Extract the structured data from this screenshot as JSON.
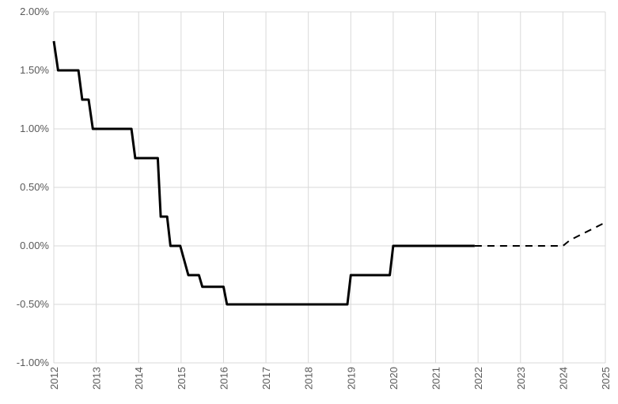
{
  "chart_data": {
    "type": "line",
    "title": "",
    "xlabel": "",
    "ylabel": "",
    "xlim": [
      2012,
      2025
    ],
    "ylim": [
      -1.0,
      2.0
    ],
    "grid": true,
    "x_ticks": [
      "2012",
      "2013",
      "2014",
      "2015",
      "2016",
      "2017",
      "2018",
      "2019",
      "2020",
      "2021",
      "2022",
      "2023",
      "2024",
      "2025"
    ],
    "y_ticks": [
      {
        "value": 2.0,
        "label": "2.00%"
      },
      {
        "value": 1.5,
        "label": "1.50%"
      },
      {
        "value": 1.0,
        "label": "1.00%"
      },
      {
        "value": 0.5,
        "label": "0.50%"
      },
      {
        "value": 0.0,
        "label": "0.00%"
      },
      {
        "value": -0.5,
        "label": "-0.50%"
      },
      {
        "value": -1.0,
        "label": "-1.00%"
      }
    ],
    "series": [
      {
        "style": "solid",
        "color": "#000000",
        "points": [
          [
            2012.0,
            1.75
          ],
          [
            2012.1,
            1.5
          ],
          [
            2012.58,
            1.5
          ],
          [
            2012.67,
            1.25
          ],
          [
            2012.82,
            1.25
          ],
          [
            2012.92,
            1.0
          ],
          [
            2013.83,
            1.0
          ],
          [
            2013.92,
            0.75
          ],
          [
            2014.45,
            0.75
          ],
          [
            2014.52,
            0.25
          ],
          [
            2014.67,
            0.25
          ],
          [
            2014.75,
            0.0
          ],
          [
            2014.98,
            0.0
          ],
          [
            2015.17,
            -0.25
          ],
          [
            2015.42,
            -0.25
          ],
          [
            2015.5,
            -0.35
          ],
          [
            2016.0,
            -0.35
          ],
          [
            2016.08,
            -0.5
          ],
          [
            2018.92,
            -0.5
          ],
          [
            2019.0,
            -0.25
          ],
          [
            2019.92,
            -0.25
          ],
          [
            2020.0,
            0.0
          ],
          [
            2021.92,
            0.0
          ]
        ]
      },
      {
        "style": "dashed",
        "color": "#000000",
        "points": [
          [
            2021.92,
            0.0
          ],
          [
            2024.0,
            0.0
          ],
          [
            2024.17,
            0.05
          ],
          [
            2025.0,
            0.2
          ]
        ]
      }
    ]
  }
}
